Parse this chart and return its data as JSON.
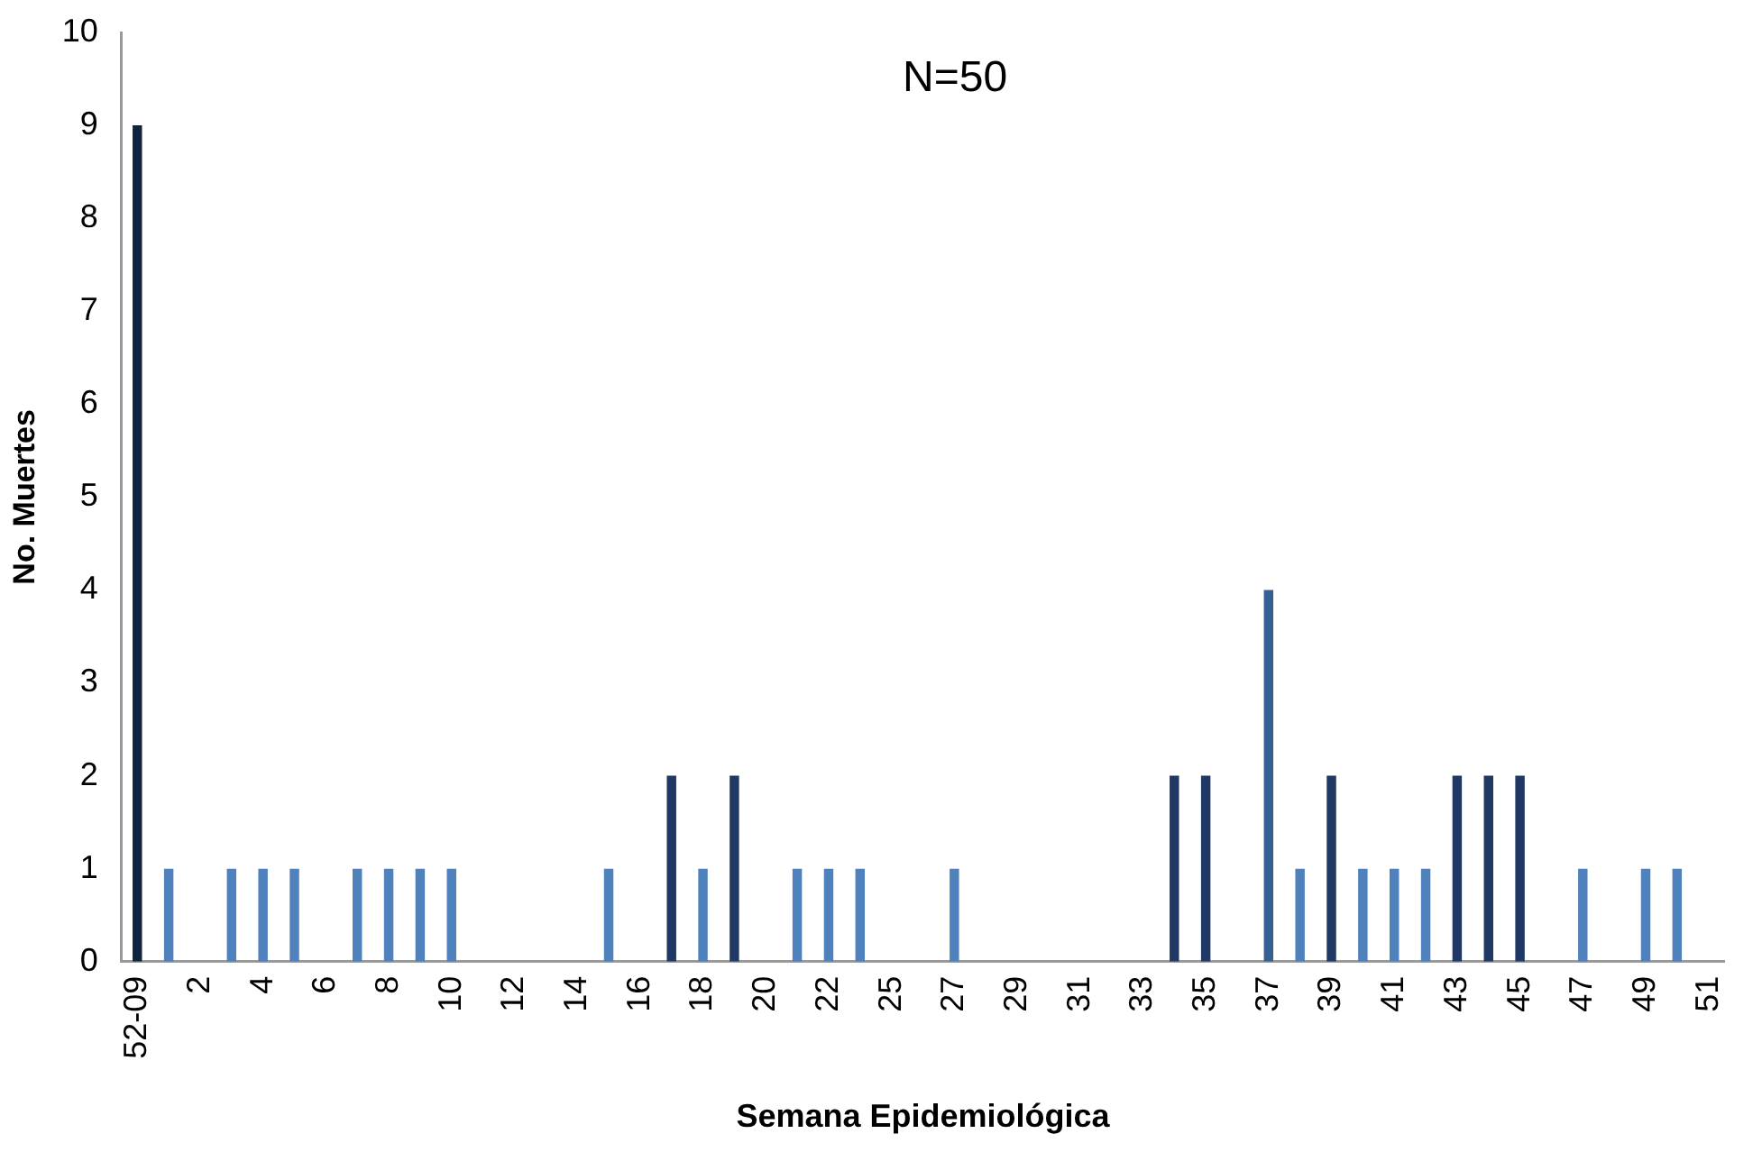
{
  "chart_data": {
    "type": "bar",
    "annotations": [
      "N=50"
    ],
    "xlabel": "Semana Epidemiológica",
    "ylabel": "No. Muertes",
    "categories": [
      "52-09",
      null,
      "2",
      null,
      "4",
      null,
      "6",
      null,
      "8",
      null,
      "10",
      null,
      "12",
      null,
      "14",
      null,
      "16",
      null,
      "18",
      null,
      "20",
      null,
      "22",
      null,
      "25",
      null,
      "27",
      null,
      "29",
      null,
      "31",
      null,
      "33",
      null,
      "35",
      null,
      "37",
      null,
      "39",
      null,
      "41",
      null,
      "43",
      null,
      "45",
      null,
      "47",
      null,
      "49",
      null,
      "51"
    ],
    "values": [
      9,
      1,
      0,
      1,
      1,
      1,
      0,
      1,
      1,
      1,
      1,
      0,
      0,
      0,
      0,
      1,
      0,
      2,
      1,
      2,
      0,
      1,
      1,
      1,
      0,
      0,
      1,
      0,
      0,
      0,
      0,
      0,
      0,
      2,
      2,
      0,
      4,
      1,
      2,
      1,
      1,
      1,
      2,
      2,
      2,
      0,
      1,
      0,
      1,
      1,
      0
    ],
    "colors": [
      "#10243f",
      "#4f81bd",
      "#4f81bd",
      "#4f81bd",
      "#4f81bd",
      "#4f81bd",
      "#4f81bd",
      "#4f81bd",
      "#4f81bd",
      "#4f81bd",
      "#4f81bd",
      "#4f81bd",
      "#4f81bd",
      "#4f81bd",
      "#4f81bd",
      "#4f81bd",
      "#4f81bd",
      "#1f3864",
      "#4f81bd",
      "#1f3864",
      "#4f81bd",
      "#4f81bd",
      "#4f81bd",
      "#4f81bd",
      "#4f81bd",
      "#4f81bd",
      "#4f81bd",
      "#4f81bd",
      "#4f81bd",
      "#4f81bd",
      "#4f81bd",
      "#4f81bd",
      "#4f81bd",
      "#1f3864",
      "#1f3864",
      "#4f81bd",
      "#376092",
      "#4f81bd",
      "#1f3864",
      "#4f81bd",
      "#4f81bd",
      "#4f81bd",
      "#1f3864",
      "#1f3864",
      "#1f3864",
      "#4f81bd",
      "#4f81bd",
      "#4f81bd",
      "#4f81bd",
      "#4f81bd",
      "#4f81bd"
    ],
    "ylim": [
      0,
      10
    ],
    "yticks": [
      0,
      1,
      2,
      3,
      4,
      5,
      6,
      7,
      8,
      9,
      10
    ],
    "grid": false,
    "legend": false
  }
}
